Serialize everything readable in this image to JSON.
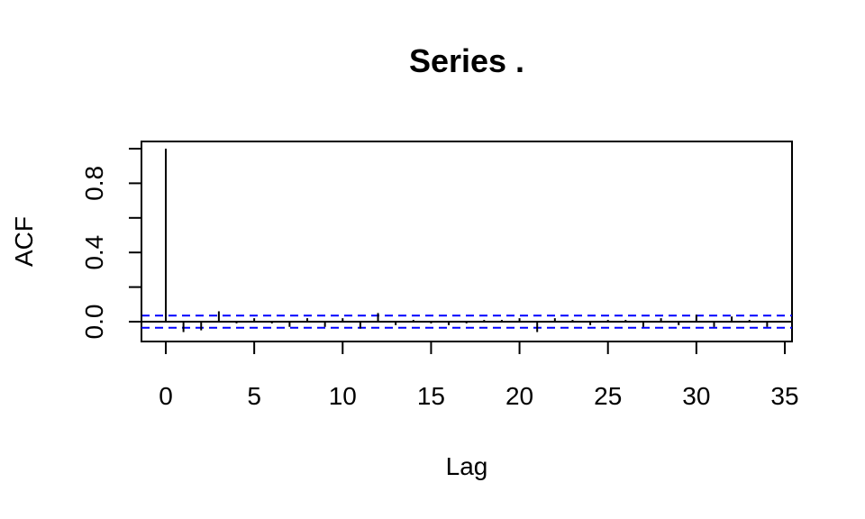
{
  "chart_data": {
    "type": "bar",
    "title": "Series  .",
    "xlabel": "Lag",
    "ylabel": "ACF",
    "xlim": [
      0,
      35
    ],
    "ylim": [
      -0.1,
      1.0
    ],
    "x_ticks": [
      "0",
      "5",
      "10",
      "15",
      "20",
      "25",
      "30",
      "35"
    ],
    "y_ticks": [
      "0.0",
      "0.4",
      "0.8"
    ],
    "lags": [
      0,
      1,
      2,
      3,
      4,
      5,
      6,
      7,
      8,
      9,
      10,
      11,
      12,
      13,
      14,
      15,
      16,
      17,
      18,
      19,
      20,
      21,
      22,
      23,
      24,
      25,
      26,
      27,
      28,
      29,
      30,
      31,
      32,
      33,
      34
    ],
    "acf": [
      1.0,
      -0.06,
      -0.05,
      0.06,
      -0.01,
      0.02,
      -0.01,
      -0.03,
      0.02,
      -0.03,
      0.02,
      -0.04,
      0.05,
      -0.02,
      0.01,
      -0.01,
      -0.02,
      -0.01,
      0.01,
      0.01,
      0.02,
      -0.06,
      0.02,
      0.01,
      -0.02,
      0.01,
      0.01,
      -0.03,
      0.02,
      -0.02,
      0.04,
      -0.03,
      0.03,
      0.01,
      -0.03
    ],
    "confidence_bounds": [
      0.035,
      -0.035
    ],
    "colors": {
      "bars": "#000000",
      "bounds": "#0000ff",
      "zero_line": "#000000"
    },
    "grid": false
  }
}
